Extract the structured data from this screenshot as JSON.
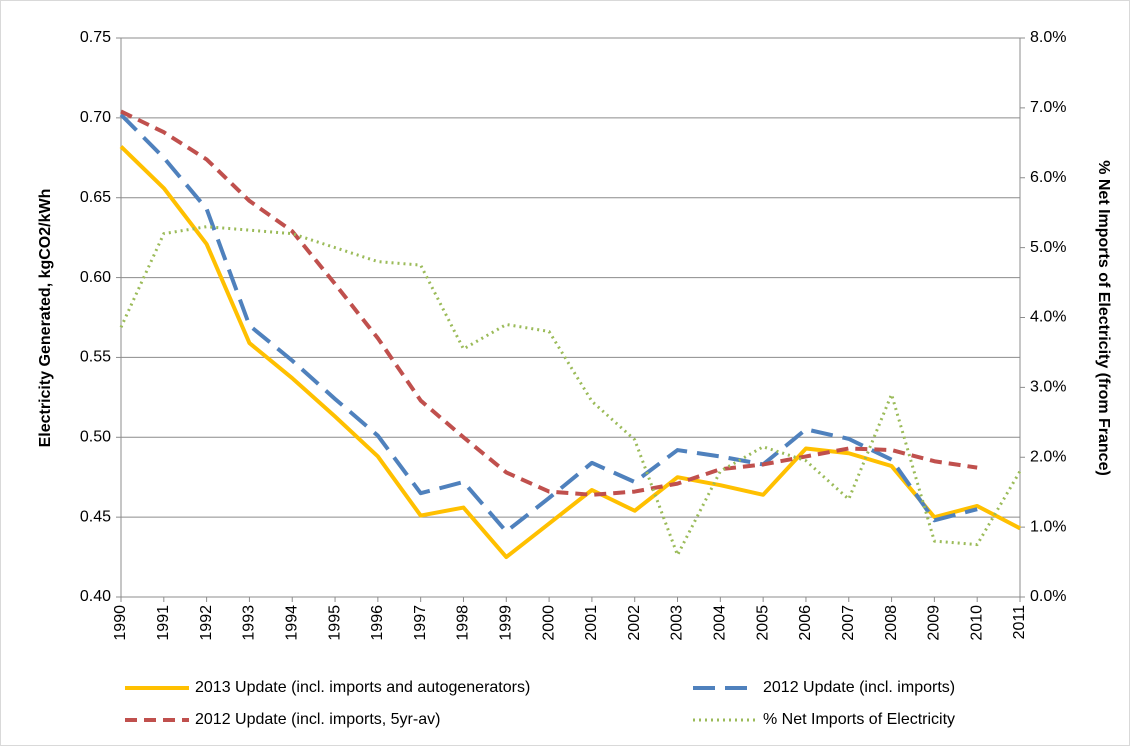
{
  "chart_data": {
    "type": "line",
    "y_label": "Electricity Generated, kgCO2/kWh",
    "y2_label": "% Net Imports of Electricity (from France)",
    "categories": [
      "1990",
      "1991",
      "1992",
      "1993",
      "1994",
      "1995",
      "1996",
      "1997",
      "1998",
      "1999",
      "2000",
      "2001",
      "2002",
      "2003",
      "2004",
      "2005",
      "2006",
      "2007",
      "2008",
      "2009",
      "2010",
      "2011"
    ],
    "ylim": [
      0.4,
      0.75
    ],
    "yticks": [
      {
        "value": 0.4,
        "label": "0.40"
      },
      0.45,
      {
        "value": 0.5,
        "label": "0.50"
      },
      0.55,
      {
        "value": 0.6,
        "label": "0.60"
      },
      0.65,
      {
        "value": 0.7,
        "label": "0.70"
      },
      0.75
    ],
    "y2lim": [
      0,
      8
    ],
    "y2ticks": [
      {
        "value": 0,
        "label": "0.0%"
      },
      {
        "value": 1,
        "label": "1.0%"
      },
      {
        "value": 2,
        "label": "2.0%"
      },
      {
        "value": 3,
        "label": "3.0%"
      },
      {
        "value": 4,
        "label": "4.0%"
      },
      {
        "value": 5,
        "label": "5.0%"
      },
      {
        "value": 6,
        "label": "6.0%"
      },
      {
        "value": 7,
        "label": "7.0%"
      },
      {
        "value": 8,
        "label": "8.0%"
      }
    ],
    "grid": true,
    "legend": "bottom",
    "series": [
      {
        "name": "2013 Update (incl. imports and autogenerators)",
        "color": "#ffc000",
        "style": "solid",
        "values": [
          0.682,
          0.656,
          0.621,
          0.559,
          0.537,
          0.513,
          0.488,
          0.451,
          0.456,
          0.425,
          0.446,
          0.467,
          0.454,
          0.475,
          0.47,
          0.464,
          0.493,
          0.49,
          0.482,
          0.45,
          0.457,
          0.443
        ]
      },
      {
        "name": "2012 Update (incl. imports)",
        "color": "#4f81bd",
        "style": "long-dash",
        "values": [
          0.702,
          0.675,
          0.643,
          0.57,
          0.548,
          0.524,
          0.501,
          0.465,
          0.472,
          0.441,
          0.462,
          0.484,
          0.472,
          0.492,
          0.488,
          0.483,
          0.505,
          0.499,
          0.486,
          0.448,
          0.455,
          null
        ]
      },
      {
        "name": "2012 Update (incl. imports, 5yr-av)",
        "color": "#c0504d",
        "style": "dash",
        "values": [
          0.704,
          0.691,
          0.674,
          0.648,
          0.629,
          0.596,
          0.562,
          0.523,
          0.5,
          0.478,
          0.466,
          0.464,
          0.466,
          0.471,
          0.48,
          0.483,
          0.488,
          0.493,
          0.492,
          0.485,
          0.481,
          null
        ]
      },
      {
        "name": "% Net Imports of Electricity",
        "color": "#9bbb59",
        "style": "dot",
        "axis": "y2",
        "values": [
          3.86,
          5.2,
          5.3,
          5.25,
          5.2,
          5.0,
          4.8,
          4.75,
          3.55,
          3.9,
          3.8,
          2.8,
          2.25,
          0.6,
          1.8,
          2.15,
          1.95,
          1.4,
          2.9,
          0.8,
          0.75,
          1.8
        ]
      }
    ]
  }
}
